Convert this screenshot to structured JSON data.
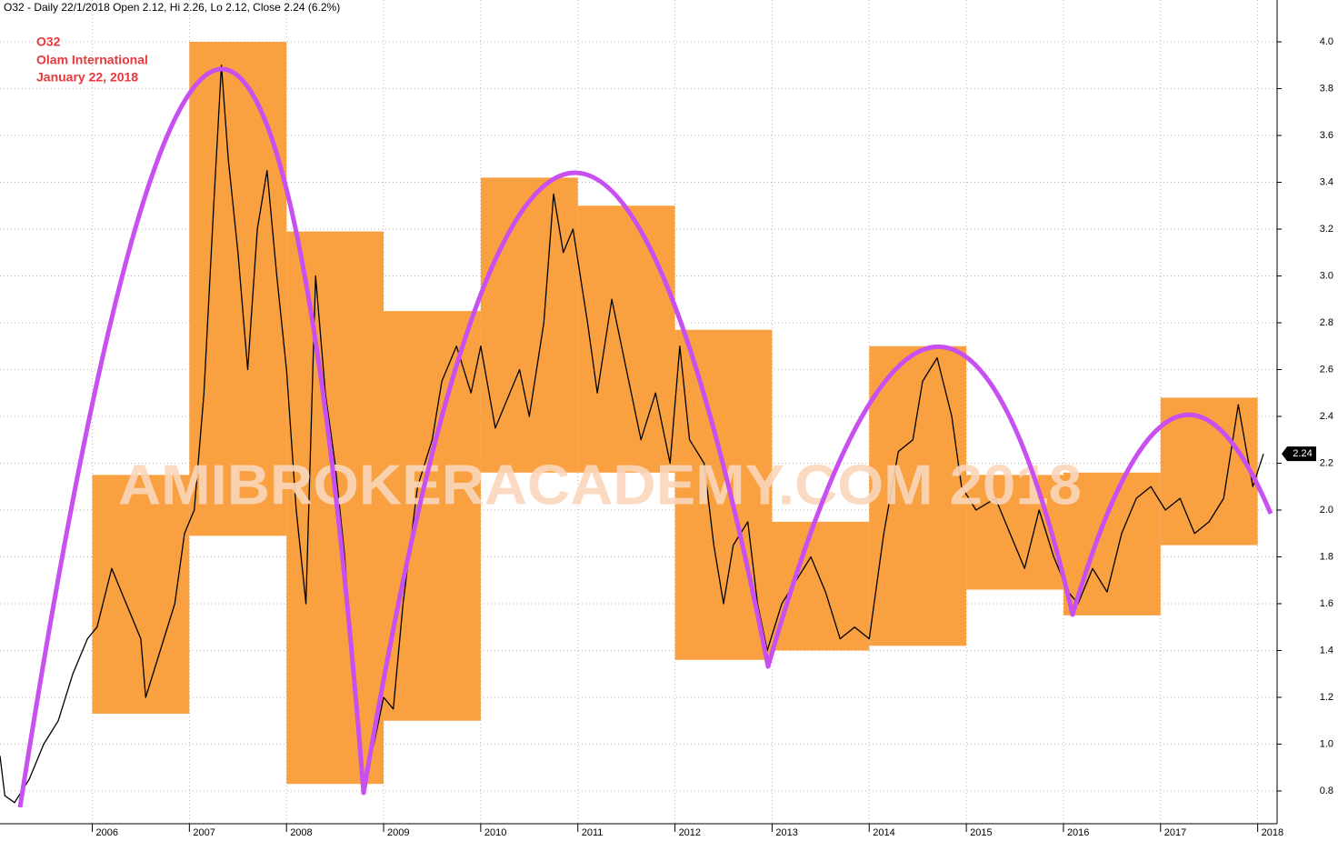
{
  "chart_data": {
    "type": "line",
    "header": "O32 - Daily 22/1/2018 Open 2.12, Hi 2.26, Lo 2.12, Close 2.24 (6.2%)",
    "title_lines": [
      "O32",
      "Olam International",
      "January 22, 2018"
    ],
    "watermark": "AMIBROKERACADEMY.COM  2018",
    "xlim": [
      2005.05,
      2018.2
    ],
    "xticks": [
      2006,
      2007,
      2008,
      2009,
      2010,
      2011,
      2012,
      2013,
      2014,
      2015,
      2016,
      2017,
      2018
    ],
    "ylim": [
      0.66,
      4.08
    ],
    "yticks": [
      0.8,
      {
        "value": 1.0,
        "label": "1.0"
      },
      1.2,
      1.4,
      1.6,
      1.8,
      {
        "value": 2.0,
        "label": "2.0"
      },
      2.2,
      2.4,
      2.6,
      2.8,
      {
        "value": 3.0,
        "label": "3.0"
      },
      3.2,
      3.4,
      3.6,
      3.8,
      {
        "value": 4.0,
        "label": "4.0"
      }
    ],
    "grid": true,
    "line_color": "#000000",
    "box_color": "#f9a040",
    "boxes": {
      "years": [
        2006,
        2007,
        2008,
        2009,
        2010,
        2011,
        2012,
        2013,
        2014,
        2015,
        2016,
        2017
      ],
      "high": [
        2.15,
        4.0,
        3.19,
        2.85,
        3.42,
        3.3,
        2.77,
        1.95,
        2.7,
        2.15,
        2.16,
        2.48
      ],
      "low": [
        1.13,
        1.89,
        0.83,
        1.1,
        2.16,
        2.16,
        1.36,
        1.4,
        1.42,
        1.66,
        1.55,
        1.85
      ]
    },
    "price": {
      "x": [
        2005.05,
        2005.1,
        2005.2,
        2005.35,
        2005.5,
        2005.65,
        2005.8,
        2005.95,
        2006.05,
        2006.2,
        2006.35,
        2006.5,
        2006.55,
        2006.7,
        2006.85,
        2006.95,
        2007.05,
        2007.15,
        2007.25,
        2007.33,
        2007.4,
        2007.5,
        2007.6,
        2007.7,
        2007.8,
        2007.9,
        2008.0,
        2008.1,
        2008.2,
        2008.3,
        2008.4,
        2008.5,
        2008.6,
        2008.7,
        2008.8,
        2008.9,
        2009.0,
        2009.1,
        2009.2,
        2009.35,
        2009.5,
        2009.6,
        2009.75,
        2009.9,
        2010.0,
        2010.15,
        2010.3,
        2010.4,
        2010.5,
        2010.65,
        2010.75,
        2010.85,
        2010.95,
        2011.1,
        2011.2,
        2011.35,
        2011.5,
        2011.65,
        2011.8,
        2011.95,
        2012.05,
        2012.15,
        2012.3,
        2012.4,
        2012.5,
        2012.6,
        2012.75,
        2012.85,
        2012.95,
        2013.1,
        2013.25,
        2013.4,
        2013.55,
        2013.7,
        2013.85,
        2014.0,
        2014.15,
        2014.3,
        2014.45,
        2014.55,
        2014.7,
        2014.85,
        2014.95,
        2015.1,
        2015.3,
        2015.45,
        2015.6,
        2015.75,
        2015.9,
        2016.05,
        2016.15,
        2016.3,
        2016.45,
        2016.6,
        2016.75,
        2016.9,
        2017.05,
        2017.2,
        2017.35,
        2017.5,
        2017.65,
        2017.8,
        2017.95,
        2018.06
      ],
      "values": [
        0.95,
        0.78,
        0.75,
        0.85,
        1.0,
        1.1,
        1.3,
        1.45,
        1.5,
        1.75,
        1.6,
        1.45,
        1.2,
        1.4,
        1.6,
        1.9,
        2.0,
        2.5,
        3.3,
        3.9,
        3.5,
        3.1,
        2.6,
        3.2,
        3.45,
        3.0,
        2.6,
        2.0,
        1.6,
        3.0,
        2.5,
        2.2,
        1.8,
        1.2,
        0.85,
        1.0,
        1.2,
        1.15,
        1.6,
        2.1,
        2.3,
        2.55,
        2.7,
        2.5,
        2.7,
        2.35,
        2.5,
        2.6,
        2.4,
        2.8,
        3.35,
        3.1,
        3.2,
        2.8,
        2.5,
        2.9,
        2.6,
        2.3,
        2.5,
        2.2,
        2.7,
        2.3,
        2.2,
        1.85,
        1.6,
        1.85,
        1.95,
        1.6,
        1.4,
        1.6,
        1.7,
        1.8,
        1.65,
        1.45,
        1.5,
        1.45,
        1.9,
        2.25,
        2.3,
        2.55,
        2.65,
        2.4,
        2.1,
        2.0,
        2.05,
        1.9,
        1.75,
        2.0,
        1.8,
        1.65,
        1.6,
        1.75,
        1.65,
        1.9,
        2.05,
        2.1,
        2.0,
        2.05,
        1.9,
        1.95,
        2.05,
        2.45,
        2.1,
        2.24
      ]
    }
  }
}
